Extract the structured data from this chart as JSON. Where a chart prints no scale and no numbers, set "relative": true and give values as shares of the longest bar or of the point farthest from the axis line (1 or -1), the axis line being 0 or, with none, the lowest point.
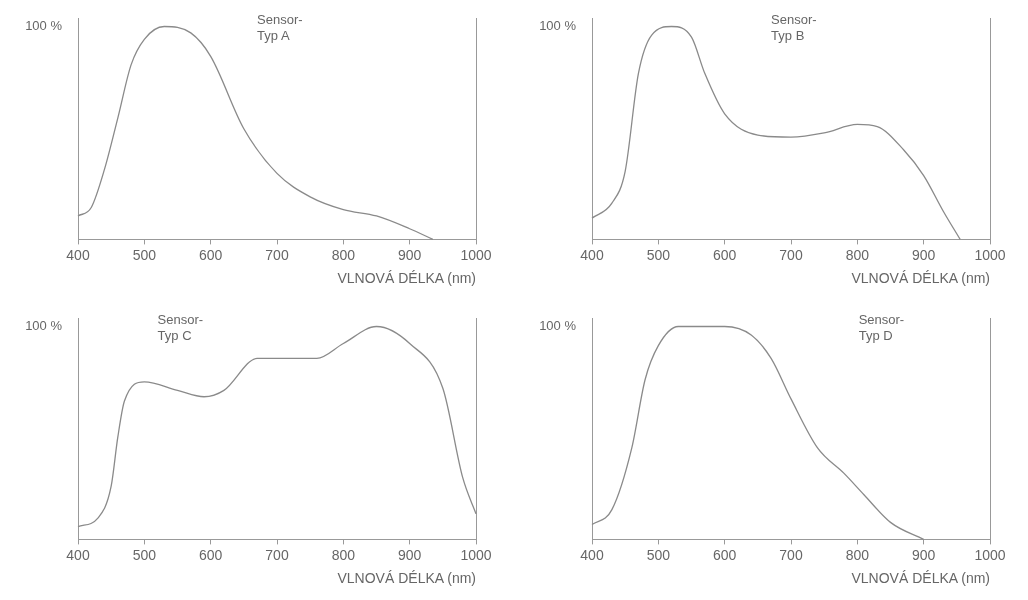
{
  "chart_data": [
    {
      "type": "line",
      "relative": true,
      "ylabel": "100 %",
      "xlabel": "VLNOVÁ DÉLKA (nm)",
      "annotations": [
        "Sensor-\nTyp A"
      ],
      "xlim": [
        400,
        1000
      ],
      "xticks": [
        400,
        500,
        600,
        700,
        800,
        900,
        1000
      ],
      "grid": false,
      "legend": false,
      "marker": "none",
      "line_style": "solid",
      "series": [
        {
          "color": "#8a8a8a",
          "x": [
            400,
            420,
            440,
            460,
            480,
            500,
            530,
            570,
            600,
            650,
            700,
            750,
            800,
            850,
            900,
            935
          ],
          "values": [
            0.11,
            0.15,
            0.33,
            0.57,
            0.82,
            0.94,
            1.0,
            0.97,
            0.86,
            0.52,
            0.31,
            0.2,
            0.14,
            0.11,
            0.05,
            0
          ]
        }
      ]
    },
    {
      "type": "line",
      "relative": true,
      "ylabel": "100 %",
      "xlabel": "VLNOVÁ DÉLKA (nm)",
      "annotations": [
        "Sensor-\nTyp B"
      ],
      "xlim": [
        400,
        1000
      ],
      "xticks": [
        400,
        500,
        600,
        700,
        800,
        900,
        1000
      ],
      "grid": false,
      "legend": false,
      "marker": "none",
      "line_style": "solid",
      "series": [
        {
          "color": "#8a8a8a",
          "x": [
            400,
            430,
            450,
            470,
            490,
            520,
            550,
            570,
            600,
            650,
            700,
            750,
            800,
            830,
            870,
            900,
            930,
            955
          ],
          "values": [
            0.1,
            0.17,
            0.32,
            0.78,
            0.96,
            1.0,
            0.95,
            0.78,
            0.59,
            0.49,
            0.48,
            0.5,
            0.54,
            0.53,
            0.42,
            0.3,
            0.13,
            0
          ]
        }
      ]
    },
    {
      "type": "line",
      "relative": true,
      "ylabel": "100 %",
      "xlabel": "VLNOVÁ DÉLKA (nm)",
      "annotations": [
        "Sensor-\nTyp C"
      ],
      "xlim": [
        400,
        1000
      ],
      "xticks": [
        400,
        500,
        600,
        700,
        800,
        900,
        1000
      ],
      "grid": false,
      "legend": false,
      "marker": "none",
      "line_style": "solid",
      "series": [
        {
          "color": "#8a8a8a",
          "x": [
            400,
            430,
            450,
            460,
            470,
            500,
            550,
            590,
            620,
            670,
            700,
            760,
            800,
            850,
            900,
            950,
            980,
            1000
          ],
          "values": [
            0.06,
            0.1,
            0.25,
            0.48,
            0.65,
            0.74,
            0.7,
            0.67,
            0.7,
            0.85,
            0.85,
            0.85,
            0.92,
            1.0,
            0.92,
            0.71,
            0.29,
            0.12
          ]
        }
      ]
    },
    {
      "type": "line",
      "relative": true,
      "ylabel": "100 %",
      "xlabel": "VLNOVÁ DÉLKA (nm)",
      "annotations": [
        "Sensor-\nTyp D"
      ],
      "xlim": [
        400,
        1000
      ],
      "xticks": [
        400,
        500,
        600,
        700,
        800,
        900,
        1000
      ],
      "grid": false,
      "legend": false,
      "marker": "none",
      "line_style": "solid",
      "series": [
        {
          "color": "#8a8a8a",
          "x": [
            400,
            430,
            460,
            480,
            500,
            530,
            600,
            640,
            670,
            700,
            740,
            780,
            810,
            850,
            900
          ],
          "values": [
            0.07,
            0.14,
            0.43,
            0.75,
            0.91,
            1.0,
            1.0,
            0.96,
            0.85,
            0.66,
            0.43,
            0.31,
            0.21,
            0.08,
            0
          ]
        }
      ]
    }
  ]
}
